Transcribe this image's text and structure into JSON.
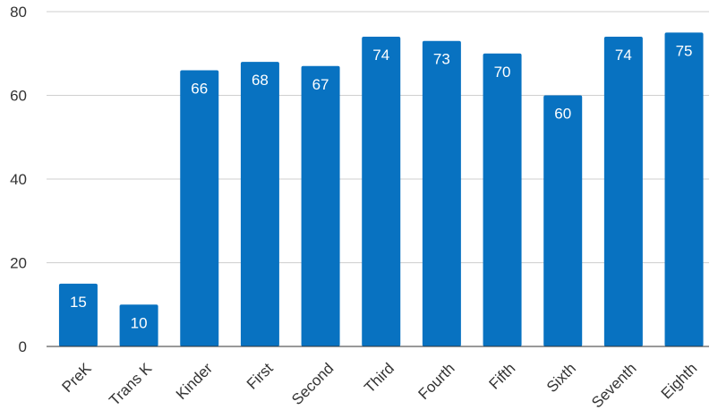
{
  "chart_data": {
    "type": "bar",
    "categories": [
      "PreK",
      "Trans K",
      "Kinder",
      "First",
      "Second",
      "Third",
      "Fourth",
      "Fifth",
      "Sixth",
      "Seventh",
      "Eighth"
    ],
    "series": [
      {
        "values": [
          15,
          10,
          66,
          68,
          67,
          74,
          73,
          70,
          60,
          74,
          75
        ]
      }
    ],
    "data_labels": [
      "15",
      "10",
      "66",
      "68",
      "67",
      "74",
      "73",
      "70",
      "60",
      "74",
      "75"
    ],
    "y_ticks": [
      "0",
      "20",
      "40",
      "60",
      "80"
    ],
    "ylim": [
      0,
      80
    ],
    "grid": true,
    "legend": "none",
    "colors": {
      "bar": "#0872c1",
      "grid": "#cfcfcf",
      "axis": "#333333",
      "label": "#ffffff"
    }
  }
}
